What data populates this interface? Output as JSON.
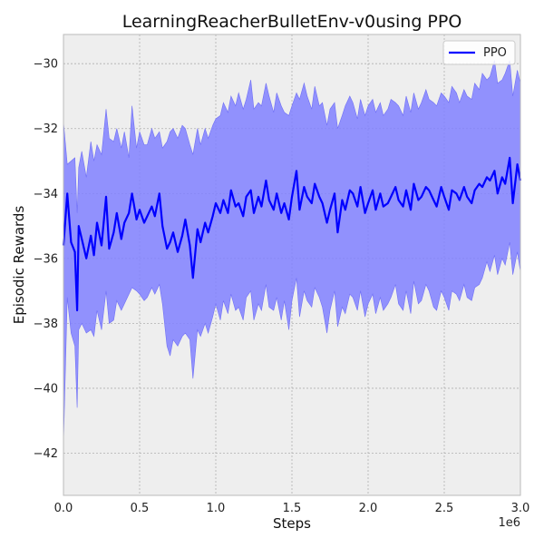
{
  "chart_data": {
    "type": "line",
    "title": "LearningReacherBulletEnv-v0using PPO",
    "xlabel": "Steps",
    "ylabel": "Episodic Rewards",
    "x_offset_text": "1e6",
    "xlim": [
      0,
      3.0
    ],
    "ylim": [
      -43.3,
      -29.1
    ],
    "xticks": [
      0.0,
      0.5,
      1.0,
      1.5,
      2.0,
      2.5,
      3.0
    ],
    "xtick_labels": [
      "0.0",
      "0.5",
      "1.0",
      "1.5",
      "2.0",
      "2.5",
      "3.0"
    ],
    "yticks": [
      -42,
      -40,
      -38,
      -36,
      -34,
      -32,
      -30
    ],
    "ytick_labels": [
      "−42",
      "−40",
      "−38",
      "−36",
      "−34",
      "−32",
      "−30"
    ],
    "grid": true,
    "legend_position": "top-right",
    "colors": {
      "line": "#0000ff",
      "band": "#8080ff",
      "background": "#eeeeee"
    },
    "series": [
      {
        "name": "PPO",
        "x": [
          0.0,
          0.025,
          0.05,
          0.075,
          0.09,
          0.1,
          0.12,
          0.15,
          0.18,
          0.2,
          0.22,
          0.25,
          0.28,
          0.3,
          0.33,
          0.35,
          0.38,
          0.4,
          0.43,
          0.45,
          0.48,
          0.5,
          0.53,
          0.55,
          0.58,
          0.6,
          0.63,
          0.65,
          0.68,
          0.7,
          0.72,
          0.75,
          0.78,
          0.8,
          0.83,
          0.85,
          0.88,
          0.9,
          0.93,
          0.95,
          0.98,
          1.0,
          1.03,
          1.05,
          1.08,
          1.1,
          1.13,
          1.15,
          1.18,
          1.2,
          1.23,
          1.25,
          1.28,
          1.3,
          1.33,
          1.35,
          1.38,
          1.4,
          1.43,
          1.45,
          1.48,
          1.5,
          1.53,
          1.55,
          1.58,
          1.6,
          1.63,
          1.65,
          1.68,
          1.7,
          1.73,
          1.75,
          1.78,
          1.8,
          1.83,
          1.85,
          1.88,
          1.9,
          1.93,
          1.95,
          1.98,
          2.0,
          2.03,
          2.05,
          2.08,
          2.1,
          2.13,
          2.15,
          2.18,
          2.2,
          2.23,
          2.25,
          2.28,
          2.3,
          2.33,
          2.35,
          2.38,
          2.4,
          2.43,
          2.45,
          2.48,
          2.5,
          2.53,
          2.55,
          2.58,
          2.6,
          2.63,
          2.65,
          2.68,
          2.7,
          2.73,
          2.75,
          2.78,
          2.8,
          2.83,
          2.85,
          2.88,
          2.9,
          2.93,
          2.95,
          2.98,
          3.0
        ],
        "mean": [
          -35.6,
          -34.0,
          -35.5,
          -35.8,
          -37.6,
          -35.0,
          -35.4,
          -36.0,
          -35.3,
          -35.9,
          -34.9,
          -35.6,
          -34.1,
          -35.7,
          -35.2,
          -34.6,
          -35.4,
          -34.9,
          -34.6,
          -34.0,
          -34.8,
          -34.5,
          -34.9,
          -34.7,
          -34.4,
          -34.7,
          -34.0,
          -35.0,
          -35.7,
          -35.5,
          -35.2,
          -35.8,
          -35.3,
          -34.8,
          -35.6,
          -36.6,
          -35.1,
          -35.5,
          -34.9,
          -35.2,
          -34.7,
          -34.3,
          -34.6,
          -34.2,
          -34.6,
          -33.9,
          -34.4,
          -34.3,
          -34.7,
          -34.1,
          -33.9,
          -34.6,
          -34.1,
          -34.4,
          -33.6,
          -34.2,
          -34.5,
          -34.0,
          -34.6,
          -34.3,
          -34.8,
          -34.1,
          -33.3,
          -34.5,
          -33.8,
          -34.1,
          -34.3,
          -33.7,
          -34.1,
          -34.3,
          -34.9,
          -34.5,
          -34.0,
          -35.2,
          -34.2,
          -34.5,
          -33.9,
          -34.0,
          -34.4,
          -33.8,
          -34.6,
          -34.3,
          -33.9,
          -34.5,
          -34.0,
          -34.4,
          -34.3,
          -34.1,
          -33.8,
          -34.2,
          -34.4,
          -33.9,
          -34.5,
          -33.7,
          -34.2,
          -34.1,
          -33.8,
          -33.9,
          -34.2,
          -34.4,
          -33.8,
          -34.1,
          -34.5,
          -33.9,
          -34.0,
          -34.2,
          -33.8,
          -34.1,
          -34.3,
          -33.9,
          -33.7,
          -33.8,
          -33.5,
          -33.6,
          -33.3,
          -34.0,
          -33.5,
          -33.7,
          -32.9,
          -34.3,
          -33.1,
          -33.6
        ],
        "upper": [
          -31.8,
          -33.1,
          -33.0,
          -32.9,
          -34.6,
          -33.2,
          -32.7,
          -33.5,
          -32.4,
          -33.0,
          -32.5,
          -32.8,
          -31.4,
          -32.3,
          -32.4,
          -32.0,
          -32.6,
          -32.1,
          -32.9,
          -31.3,
          -32.6,
          -32.1,
          -32.5,
          -32.5,
          -32.0,
          -32.3,
          -32.1,
          -32.6,
          -32.4,
          -32.1,
          -32.0,
          -32.3,
          -31.9,
          -32.0,
          -32.5,
          -32.8,
          -32.0,
          -32.5,
          -32.0,
          -32.3,
          -31.9,
          -31.7,
          -31.6,
          -31.2,
          -31.5,
          -31.0,
          -31.3,
          -30.9,
          -31.4,
          -31.1,
          -30.5,
          -31.4,
          -31.2,
          -31.3,
          -30.6,
          -31.0,
          -31.5,
          -30.9,
          -31.3,
          -31.5,
          -31.6,
          -31.3,
          -30.9,
          -31.1,
          -30.6,
          -31.0,
          -31.4,
          -30.7,
          -31.3,
          -31.2,
          -31.9,
          -31.4,
          -31.2,
          -32.0,
          -31.6,
          -31.3,
          -31.0,
          -31.2,
          -31.7,
          -31.1,
          -31.6,
          -31.3,
          -31.1,
          -31.5,
          -31.2,
          -31.6,
          -31.4,
          -31.1,
          -31.2,
          -31.3,
          -31.6,
          -31.0,
          -31.5,
          -30.9,
          -31.4,
          -31.2,
          -30.8,
          -31.1,
          -31.2,
          -31.3,
          -30.9,
          -31.0,
          -31.2,
          -30.7,
          -30.9,
          -31.2,
          -30.8,
          -31.0,
          -31.1,
          -30.6,
          -30.8,
          -30.3,
          -30.5,
          -30.4,
          -29.9,
          -30.6,
          -30.5,
          -30.3,
          -29.9,
          -31.0,
          -30.2,
          -30.6
        ],
        "lower": [
          -41.7,
          -37.2,
          -38.3,
          -38.7,
          -40.6,
          -38.2,
          -38.0,
          -38.3,
          -38.2,
          -38.4,
          -37.6,
          -38.2,
          -37.0,
          -38.0,
          -37.9,
          -37.3,
          -37.6,
          -37.4,
          -37.1,
          -36.9,
          -37.0,
          -37.1,
          -37.3,
          -37.2,
          -36.9,
          -37.1,
          -36.8,
          -37.4,
          -38.7,
          -39.0,
          -38.5,
          -38.7,
          -38.4,
          -38.3,
          -38.5,
          -39.7,
          -38.2,
          -38.4,
          -38.0,
          -38.3,
          -37.8,
          -37.4,
          -37.9,
          -37.3,
          -37.7,
          -37.1,
          -37.6,
          -37.5,
          -37.9,
          -37.2,
          -37.0,
          -37.9,
          -37.4,
          -37.6,
          -36.8,
          -37.5,
          -37.6,
          -37.2,
          -37.9,
          -37.3,
          -38.2,
          -37.3,
          -36.6,
          -37.8,
          -37.0,
          -37.3,
          -37.5,
          -36.9,
          -37.2,
          -37.5,
          -38.3,
          -37.6,
          -37.0,
          -38.1,
          -37.5,
          -37.7,
          -37.1,
          -37.2,
          -37.6,
          -37.0,
          -37.8,
          -37.4,
          -37.1,
          -37.7,
          -37.2,
          -37.6,
          -37.4,
          -37.2,
          -36.8,
          -37.4,
          -37.6,
          -37.0,
          -37.7,
          -36.7,
          -37.4,
          -37.3,
          -36.8,
          -37.0,
          -37.5,
          -37.6,
          -37.0,
          -37.2,
          -37.6,
          -37.0,
          -37.1,
          -37.3,
          -36.8,
          -37.2,
          -37.3,
          -36.9,
          -36.8,
          -36.6,
          -36.1,
          -36.4,
          -35.9,
          -36.5,
          -36.0,
          -36.2,
          -35.5,
          -36.5,
          -35.8,
          -36.4
        ]
      }
    ]
  }
}
